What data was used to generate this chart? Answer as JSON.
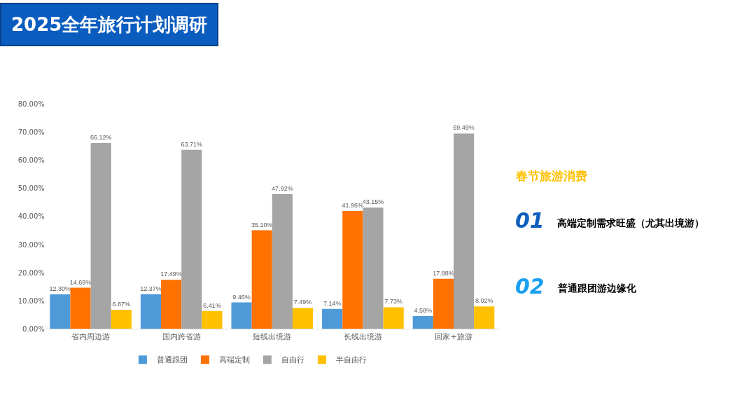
{
  "chart_data": {
    "type": "bar",
    "title": "2025全年旅行计划调研",
    "categories": [
      "省内周边游",
      "国内跨省游",
      "短线出境游",
      "长线出境游",
      "回家+旅游"
    ],
    "series": [
      {
        "name": "普通跟团",
        "color": "#4e9ad8",
        "values": [
          12.3,
          12.37,
          9.46,
          7.14,
          4.58
        ],
        "value_labels": [
          "12.30%",
          "12.37%",
          "9.46%",
          "7.14%",
          "4.58%"
        ]
      },
      {
        "name": "高端定制",
        "color": "#ff7100",
        "values": [
          14.69,
          17.49,
          35.1,
          41.96,
          17.88
        ],
        "value_labels": [
          "14.69%",
          "17.49%",
          "35.10%",
          "41.96%",
          "17.88%"
        ]
      },
      {
        "name": "自由行",
        "color": "#a5a5a5",
        "values": [
          66.12,
          63.71,
          47.92,
          43.15,
          69.49
        ],
        "value_labels": [
          "66.12%",
          "63.71%",
          "47.92%",
          "43.15%",
          "69.49%"
        ]
      },
      {
        "name": "半自由行",
        "color": "#ffc000",
        "values": [
          6.87,
          6.41,
          7.49,
          7.73,
          8.02
        ],
        "value_labels": [
          "6.87%",
          "6.41%",
          "7.49%",
          "7.73%",
          "8.02%"
        ]
      }
    ],
    "ylim": [
      0,
      80
    ],
    "yticks": [
      {
        "value": 0,
        "label": "0.00%"
      },
      {
        "value": 10,
        "label": "10.00%"
      },
      {
        "value": 20,
        "label": "20.00%"
      },
      {
        "value": 30,
        "label": "30.00%"
      },
      {
        "value": 40,
        "label": "40.00%"
      },
      {
        "value": 50,
        "label": "50.00%"
      },
      {
        "value": 60,
        "label": "60.00%"
      },
      {
        "value": 70,
        "label": "70.00%"
      },
      {
        "value": 80,
        "label": "80.00%"
      }
    ],
    "grid": false,
    "legend": "bottom",
    "annotations": [
      "春节旅游消费",
      "01",
      "高端定制需求旺盛（尤其出境游）",
      "02",
      "普通跟团游边缘化"
    ]
  }
}
